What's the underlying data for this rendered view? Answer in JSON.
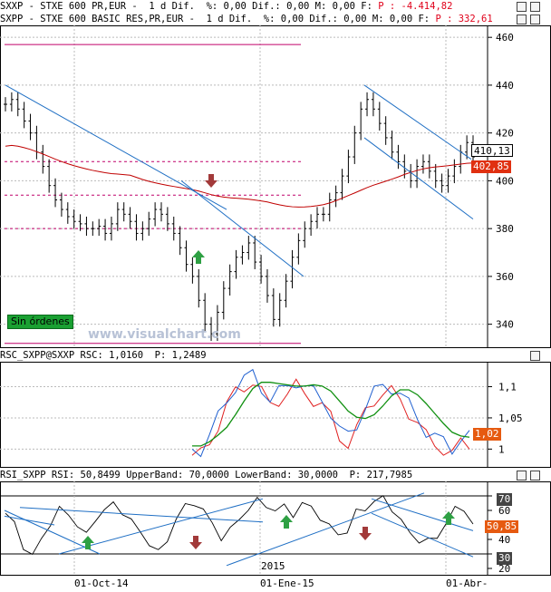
{
  "header": {
    "line1_prefix": "SXXP - STXE 600 PR,EUR -  1 d Dif.  %: 0,00 Dif.: 0,00 M: 0,00 F:",
    "line1_value": "P : -4.414,82",
    "line2_prefix": "SXPP - STXE 600 BASIC RES,PR,EUR -  1 d Dif.  %: 0,00 Dif.: 0,00 M: 0,00 F:",
    "line2_value": "P : 332,61"
  },
  "price_panel": {
    "y_ticks": [
      "460",
      "440",
      "420",
      "400",
      "380",
      "360",
      "340"
    ],
    "price_tag": "410,13",
    "ma_tag": "402,85",
    "status": "Sin órdenes",
    "watermark": "www.visualchart.com"
  },
  "rsc_panel": {
    "title": "RSC_SXPP@SXXP RSC: 1,0160  P: 1,2489",
    "y_ticks": [
      "1,1",
      "1,05",
      "1"
    ],
    "tag": "1,02"
  },
  "rsi_panel": {
    "title": "RSI_SXPP RSI: 50,8499 UpperBand: 70,0000 LowerBand: 30,0000  P: 217,7985",
    "y_ticks": [
      "70",
      "60",
      "50",
      "40",
      "30",
      "20"
    ],
    "tags": {
      "upper": "70",
      "value": "50,85",
      "lower": "30"
    },
    "year_label": "2015"
  },
  "x_axis": {
    "labels": [
      "01-Oct-14",
      "01-Ene-15",
      "01-Abr-"
    ]
  },
  "colors": {
    "up_arrow": "#2ea043",
    "down_arrow": "#a23a3a",
    "trend": "#1f6fc4",
    "ma": "#c00000",
    "hline": "#c0006a",
    "tag_bg": "#e65a10"
  },
  "chart_data": {
    "type": "line",
    "series": [
      {
        "values": [
          432,
          434,
          430,
          425,
          420,
          412,
          406,
          398,
          392,
          388,
          385,
          383,
          382,
          380,
          380,
          381,
          378,
          382,
          388,
          386,
          383,
          378,
          380,
          384,
          388,
          386,
          382,
          378,
          372,
          365,
          360,
          350,
          340,
          336,
          345,
          355,
          362,
          368,
          370,
          374,
          366,
          360,
          352,
          342,
          350,
          358,
          368,
          375,
          380,
          383,
          386,
          386,
          392,
          395,
          402,
          410,
          420,
          430,
          434,
          430,
          424,
          418,
          412,
          408,
          404,
          400,
          406,
          408,
          404,
          400,
          398,
          402,
          406,
          412,
          416,
          410
        ]
      },
      {
        "values": [
          1.0,
          1.0,
          1.02,
          1.05,
          1.08,
          1.1,
          1.11,
          1.12,
          1.1,
          1.08,
          1.09,
          1.1,
          1.11,
          1.1,
          1.09,
          1.08,
          1.06,
          1.03,
          1.02,
          1.04,
          1.07,
          1.09,
          1.1,
          1.1,
          1.09,
          1.07,
          1.05,
          1.03,
          1.02,
          1.01,
          1.0,
          1.02,
          1.02
        ]
      },
      {
        "values": [
          58,
          50,
          36,
          28,
          40,
          52,
          60,
          58,
          50,
          42,
          55,
          60,
          64,
          60,
          52,
          45,
          38,
          30,
          40,
          55,
          62,
          66,
          60,
          50,
          42,
          46,
          54,
          62,
          66,
          64,
          60,
          62,
          58,
          64,
          62,
          56,
          48,
          44,
          46,
          58,
          62,
          66,
          68,
          62,
          52,
          44,
          40,
          38,
          42,
          52,
          60,
          62,
          50
        ]
      }
    ],
    "ylim": [
      330,
      465
    ]
  }
}
